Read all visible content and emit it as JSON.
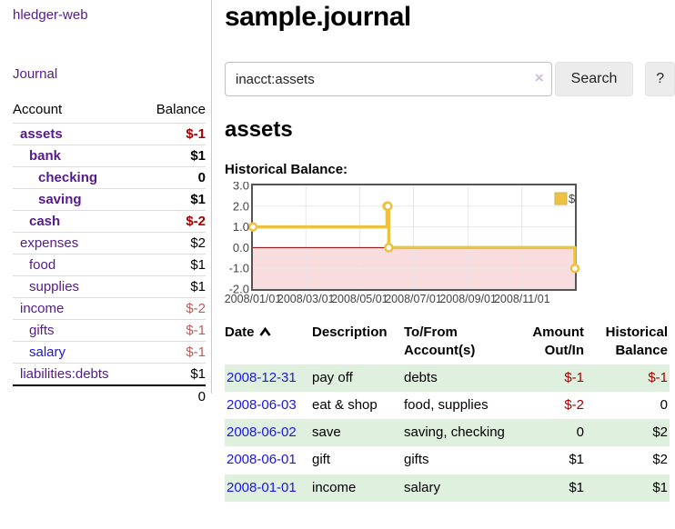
{
  "sidebar": {
    "brand": "hledger-web",
    "nav_journal": "Journal",
    "table": {
      "header_account": "Account",
      "header_balance": "Balance",
      "rows": [
        {
          "account": "assets",
          "balance": "$-1",
          "level": 1,
          "bold": true,
          "balance_style": "neg-strong",
          "link": "visited"
        },
        {
          "account": "bank",
          "balance": "$1",
          "level": 2,
          "bold": true,
          "balance_style": "pos",
          "link": "visited"
        },
        {
          "account": "checking",
          "balance": "0",
          "level": 3,
          "bold": true,
          "balance_style": "pos",
          "link": "visited"
        },
        {
          "account": "saving",
          "balance": "$1",
          "level": 3,
          "bold": true,
          "balance_style": "pos",
          "link": "visited"
        },
        {
          "account": "cash",
          "balance": "$-2",
          "level": 2,
          "bold": true,
          "balance_style": "neg-strong",
          "link": "visited"
        },
        {
          "account": "expenses",
          "balance": "$2",
          "level": 1,
          "bold": false,
          "balance_style": "pos",
          "link": "visited"
        },
        {
          "account": "food",
          "balance": "$1",
          "level": 2,
          "bold": false,
          "balance_style": "pos",
          "link": "visited"
        },
        {
          "account": "supplies",
          "balance": "$1",
          "level": 2,
          "bold": false,
          "balance_style": "pos",
          "link": "visited"
        },
        {
          "account": "income",
          "balance": "$-2",
          "level": 1,
          "bold": false,
          "balance_style": "neg-soft",
          "link": "visited"
        },
        {
          "account": "gifts",
          "balance": "$-1",
          "level": 2,
          "bold": false,
          "balance_style": "neg-soft",
          "link": "visited"
        },
        {
          "account": "salary",
          "balance": "$-1",
          "level": 2,
          "bold": false,
          "balance_style": "neg-soft",
          "link": "unvisited"
        },
        {
          "account": "liabilities:debts",
          "balance": "$1",
          "level": 1,
          "bold": false,
          "balance_style": "pos",
          "link": "visited"
        }
      ],
      "total": "0"
    }
  },
  "header": {
    "title": "sample.journal"
  },
  "search": {
    "value": "inacct:assets",
    "clear_icon": "×",
    "button_label": "Search",
    "help_label": "?"
  },
  "account_page": {
    "heading": "assets",
    "chart_label": "Historical Balance:"
  },
  "chart_data": {
    "type": "line",
    "step": true,
    "title": "Historical Balance:",
    "series": [
      {
        "name": "$",
        "color": "#edc240",
        "points": [
          [
            "2008-01-01",
            1
          ],
          [
            "2008-06-01",
            2
          ],
          [
            "2008-06-02",
            2
          ],
          [
            "2008-06-03",
            0
          ],
          [
            "2008-12-31",
            -1
          ]
        ]
      }
    ],
    "x_range": [
      "2008-01-01",
      "2008-12-31"
    ],
    "x_ticks": [
      {
        "date": "2008-01-01",
        "label": "2008/01/01"
      },
      {
        "date": "2008-03-01",
        "label": "2008/03/01"
      },
      {
        "date": "2008-05-01",
        "label": "2008/05/01"
      },
      {
        "date": "2008-07-01",
        "label": "2008/07/01"
      },
      {
        "date": "2008-09-01",
        "label": "2008/09/01"
      },
      {
        "date": "2008-11-01",
        "label": "2008/11/01"
      }
    ],
    "y_ticks": [
      3.0,
      2.0,
      1.0,
      0.0,
      -1.0,
      -2.0
    ],
    "ylim": [
      -2,
      3
    ],
    "grid": true,
    "legend_position": "top-right",
    "negative_fill": "#f9dcde",
    "zero_line_color": "#8b0000",
    "border_color": "#545454",
    "gridline_color": "#e7e7e7"
  },
  "transactions": {
    "headers": {
      "date": "Date",
      "description": "Description",
      "tofrom_line1": "To/From",
      "tofrom_line2": "Account(s)",
      "amount_line1": "Amount",
      "amount_line2": "Out/In",
      "historical_line1": "Historical",
      "historical_line2": "Balance"
    },
    "rows": [
      {
        "date": "2008-12-31",
        "description": "pay off",
        "accounts": "debts",
        "amount": "$-1",
        "amount_negative": true,
        "balance": "$-1",
        "balance_negative": true
      },
      {
        "date": "2008-06-03",
        "description": "eat & shop",
        "accounts": "food, supplies",
        "amount": "$-2",
        "amount_negative": true,
        "balance": "0",
        "balance_negative": false
      },
      {
        "date": "2008-06-02",
        "description": "save",
        "accounts": "saving, checking",
        "amount": "0",
        "amount_negative": false,
        "balance": "$2",
        "balance_negative": false
      },
      {
        "date": "2008-06-01",
        "description": "gift",
        "accounts": "gifts",
        "amount": "$1",
        "amount_negative": false,
        "balance": "$2",
        "balance_negative": false
      },
      {
        "date": "2008-01-01",
        "description": "income",
        "accounts": "salary",
        "amount": "$1",
        "amount_negative": false,
        "balance": "$1",
        "balance_negative": false
      }
    ]
  },
  "colors": {
    "link_purple": "#551a8b",
    "link_blue": "#1c17de",
    "negative_strong": "#a40000",
    "negative_soft": "#b95c5c",
    "row_stripe_green": "#dff0df",
    "chart_line": "#edc240"
  }
}
